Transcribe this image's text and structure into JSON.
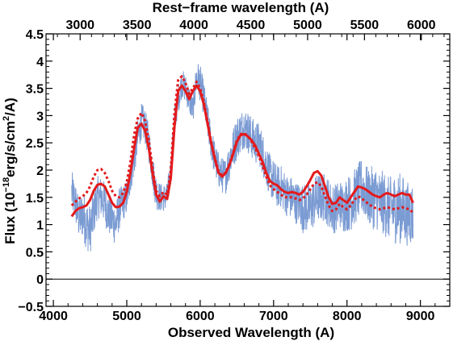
{
  "chart_data": {
    "type": "line",
    "title": "",
    "xlabel": "Observed Wavelength (A)",
    "ylabel": {
      "prefix": "Flux (10",
      "exponent": "−18",
      "middle": "erg/s/cm",
      "exponent2": "2",
      "suffix": "/A)"
    },
    "top_axis_label": "Rest−frame wavelength (A)",
    "xlim": [
      3900,
      9400
    ],
    "ylim": [
      -0.5,
      4.5
    ],
    "rest_frame_xlim": [
      2700,
      6250
    ],
    "x_ticks": [
      "4000",
      "5000",
      "6000",
      "7000",
      "8000",
      "9000"
    ],
    "y_ticks": [
      "−0.5",
      "0",
      "0.5",
      "1",
      "1.5",
      "2",
      "2.5",
      "3",
      "3.5",
      "4",
      "4.5"
    ],
    "top_ticks": [
      "3000",
      "3500",
      "4000",
      "4500",
      "5000",
      "5500",
      "6000"
    ],
    "zero_line": 0,
    "grid": false,
    "legend": "none",
    "series": [
      {
        "style": "noisy-spectrum",
        "color": "#7b9bd3",
        "x": [
          4250,
          4300,
          4350,
          4400,
          4450,
          4500,
          4550,
          4600,
          4650,
          4700,
          4750,
          4800,
          4850,
          4900,
          4950,
          5000,
          5050,
          5100,
          5150,
          5200,
          5250,
          5300,
          5350,
          5400,
          5450,
          5500,
          5550,
          5600,
          5650,
          5700,
          5750,
          5800,
          5850,
          5900,
          5950,
          6000,
          6050,
          6100,
          6150,
          6200,
          6250,
          6300,
          6350,
          6400,
          6450,
          6500,
          6550,
          6600,
          6650,
          6700,
          6750,
          6800,
          6850,
          6900,
          6950,
          7000,
          7050,
          7100,
          7150,
          7200,
          7250,
          7300,
          7350,
          7400,
          7450,
          7500,
          7550,
          7600,
          7650,
          7700,
          7750,
          7800,
          7850,
          7900,
          7950,
          8000,
          8050,
          8100,
          8150,
          8200,
          8250,
          8300,
          8350,
          8400,
          8450,
          8500,
          8550,
          8600,
          8650,
          8700,
          8750,
          8800,
          8850,
          8900
        ],
        "y": [
          1.6,
          1.4,
          1.1,
          1.2,
          1.0,
          0.9,
          1.2,
          1.5,
          1.5,
          1.4,
          1.2,
          1.1,
          1.0,
          1.3,
          1.4,
          1.5,
          1.9,
          2.2,
          2.6,
          2.9,
          2.8,
          2.5,
          2.0,
          1.6,
          1.5,
          1.5,
          1.5,
          2.0,
          2.9,
          3.3,
          3.6,
          3.5,
          3.3,
          3.1,
          3.7,
          3.6,
          3.3,
          2.9,
          2.5,
          2.2,
          2.0,
          1.9,
          1.9,
          2.2,
          2.4,
          2.6,
          2.7,
          2.8,
          2.7,
          2.6,
          2.5,
          2.5,
          2.3,
          2.1,
          1.9,
          1.8,
          1.7,
          1.7,
          1.6,
          1.5,
          1.5,
          1.4,
          1.4,
          1.3,
          1.3,
          1.3,
          1.4,
          1.5,
          1.5,
          1.5,
          1.4,
          1.3,
          1.3,
          1.4,
          1.3,
          1.4,
          1.4,
          1.5,
          1.6,
          1.7,
          1.6,
          1.5,
          1.5,
          1.5,
          1.4,
          1.4,
          1.3,
          1.3,
          1.3,
          1.3,
          1.3,
          1.2,
          1.2,
          1.2
        ],
        "noise": [
          0.3,
          0.3,
          0.3,
          0.35,
          0.35,
          0.35,
          0.3,
          0.3,
          0.3,
          0.3,
          0.3,
          0.3,
          0.3,
          0.3,
          0.25,
          0.25,
          0.25,
          0.25,
          0.25,
          0.25,
          0.25,
          0.25,
          0.25,
          0.25,
          0.2,
          0.2,
          0.2,
          0.2,
          0.2,
          0.2,
          0.2,
          0.2,
          0.2,
          0.2,
          0.25,
          0.25,
          0.25,
          0.25,
          0.25,
          0.25,
          0.25,
          0.25,
          0.25,
          0.3,
          0.3,
          0.3,
          0.3,
          0.3,
          0.3,
          0.3,
          0.3,
          0.3,
          0.3,
          0.3,
          0.3,
          0.3,
          0.3,
          0.3,
          0.3,
          0.3,
          0.3,
          0.3,
          0.3,
          0.35,
          0.35,
          0.35,
          0.35,
          0.35,
          0.35,
          0.35,
          0.35,
          0.35,
          0.35,
          0.35,
          0.35,
          0.4,
          0.4,
          0.4,
          0.4,
          0.4,
          0.4,
          0.4,
          0.45,
          0.45,
          0.45,
          0.45,
          0.45,
          0.45,
          0.5,
          0.5,
          0.5,
          0.45,
          0.45,
          0.45
        ]
      },
      {
        "style": "solid",
        "color": "#e31a1c",
        "x": [
          4250,
          4300,
          4350,
          4400,
          4450,
          4500,
          4550,
          4600,
          4650,
          4700,
          4750,
          4800,
          4850,
          4900,
          4950,
          5000,
          5050,
          5100,
          5150,
          5200,
          5250,
          5300,
          5350,
          5400,
          5450,
          5500,
          5550,
          5600,
          5650,
          5700,
          5750,
          5800,
          5850,
          5900,
          5950,
          6000,
          6050,
          6100,
          6150,
          6200,
          6250,
          6300,
          6350,
          6400,
          6450,
          6500,
          6550,
          6600,
          6650,
          6700,
          6750,
          6800,
          6850,
          6900,
          6950,
          7000,
          7050,
          7100,
          7150,
          7200,
          7250,
          7300,
          7350,
          7400,
          7450,
          7500,
          7550,
          7600,
          7650,
          7700,
          7750,
          7800,
          7850,
          7900,
          7950,
          8000,
          8050,
          8100,
          8150,
          8200,
          8250,
          8300,
          8350,
          8400,
          8450,
          8500,
          8550,
          8600,
          8650,
          8700,
          8750,
          8800,
          8850,
          8900
        ],
        "y": [
          1.15,
          1.25,
          1.3,
          1.32,
          1.35,
          1.45,
          1.62,
          1.73,
          1.75,
          1.7,
          1.55,
          1.4,
          1.32,
          1.33,
          1.4,
          1.6,
          1.95,
          2.4,
          2.78,
          2.85,
          2.72,
          2.4,
          1.95,
          1.55,
          1.42,
          1.52,
          1.47,
          1.85,
          2.8,
          3.45,
          3.55,
          3.45,
          3.3,
          3.45,
          3.55,
          3.45,
          3.2,
          2.85,
          2.5,
          2.2,
          1.95,
          1.88,
          1.95,
          2.1,
          2.3,
          2.52,
          2.64,
          2.66,
          2.62,
          2.55,
          2.45,
          2.3,
          2.15,
          1.95,
          1.8,
          1.75,
          1.72,
          1.65,
          1.6,
          1.58,
          1.6,
          1.58,
          1.55,
          1.6,
          1.7,
          1.82,
          1.95,
          1.98,
          1.9,
          1.7,
          1.5,
          1.38,
          1.4,
          1.5,
          1.45,
          1.4,
          1.5,
          1.6,
          1.7,
          1.68,
          1.65,
          1.6,
          1.55,
          1.52,
          1.5,
          1.55,
          1.58,
          1.55,
          1.52,
          1.55,
          1.58,
          1.55,
          1.55,
          1.4
        ]
      },
      {
        "style": "dotted",
        "color": "#e31a1c",
        "x": [
          4250,
          4300,
          4350,
          4400,
          4450,
          4500,
          4550,
          4600,
          4650,
          4700,
          4750,
          4800,
          4850,
          4900,
          4950,
          5000,
          5050,
          5100,
          5150,
          5200,
          5250,
          5300,
          5350,
          5400,
          5450,
          5500,
          5550,
          5600,
          5650,
          5700,
          5750,
          5800,
          5850,
          5900,
          5950,
          6000,
          6050,
          6100,
          6150,
          6200,
          6250,
          6300,
          6350,
          6400,
          6450,
          6500,
          6550,
          6600,
          6650,
          6700,
          6750,
          6800,
          6850,
          6900,
          6950,
          7000,
          7050,
          7100,
          7150,
          7200,
          7250,
          7300,
          7350,
          7400,
          7450,
          7500,
          7550,
          7600,
          7650,
          7700,
          7750,
          7800,
          7850,
          7900,
          7950,
          8000,
          8050,
          8100,
          8150,
          8200,
          8250,
          8300,
          8350,
          8400,
          8450,
          8500,
          8550,
          8600,
          8650,
          8700,
          8750,
          8800,
          8850,
          8900
        ],
        "y": [
          1.35,
          1.42,
          1.48,
          1.52,
          1.58,
          1.7,
          1.88,
          2.0,
          2.02,
          1.95,
          1.8,
          1.62,
          1.52,
          1.5,
          1.58,
          1.78,
          2.15,
          2.65,
          2.95,
          3.05,
          2.9,
          2.55,
          2.05,
          1.62,
          1.52,
          1.6,
          1.55,
          2.0,
          3.05,
          3.65,
          3.72,
          3.6,
          3.4,
          3.5,
          3.62,
          3.5,
          3.25,
          2.9,
          2.52,
          2.22,
          1.98,
          1.9,
          1.96,
          2.12,
          2.32,
          2.55,
          2.66,
          2.68,
          2.62,
          2.52,
          2.4,
          2.25,
          2.08,
          1.88,
          1.72,
          1.65,
          1.6,
          1.55,
          1.5,
          1.5,
          1.5,
          1.48,
          1.45,
          1.48,
          1.55,
          1.65,
          1.75,
          1.78,
          1.7,
          1.52,
          1.35,
          1.25,
          1.28,
          1.38,
          1.32,
          1.28,
          1.35,
          1.45,
          1.52,
          1.48,
          1.42,
          1.38,
          1.32,
          1.3,
          1.28,
          1.3,
          1.32,
          1.3,
          1.28,
          1.3,
          1.32,
          1.3,
          1.28,
          1.22
        ]
      }
    ]
  }
}
